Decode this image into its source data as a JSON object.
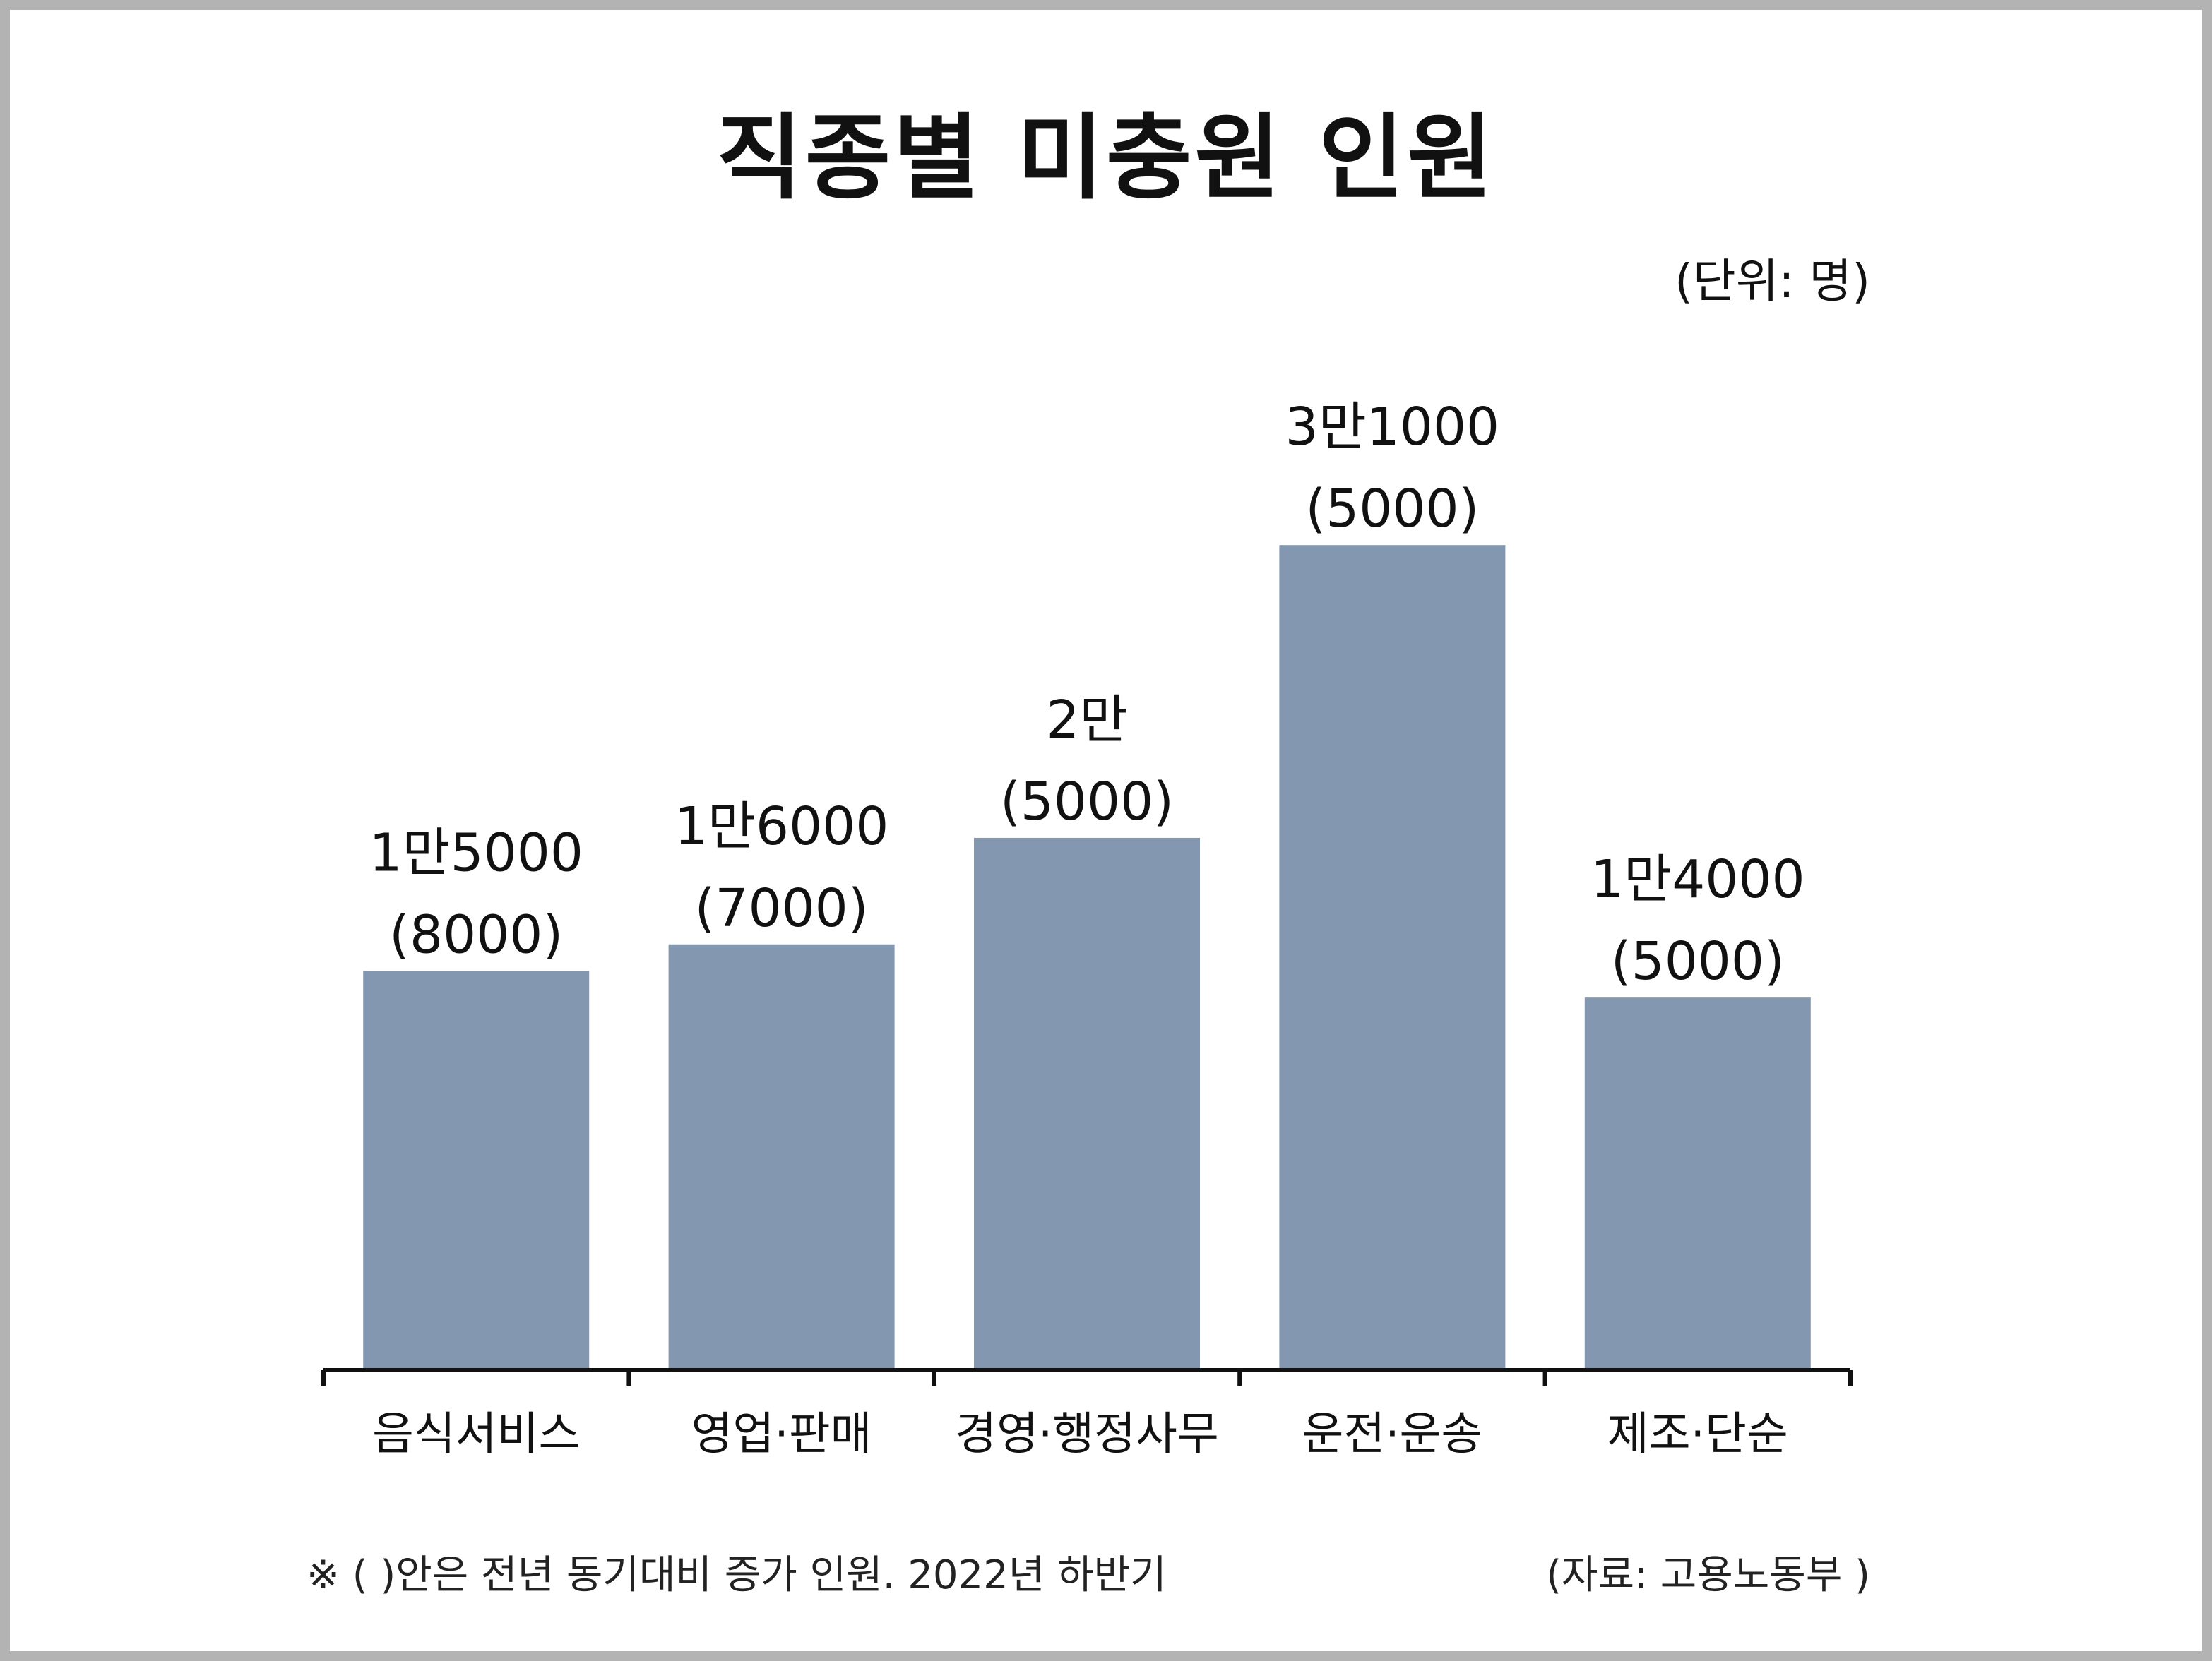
{
  "chart_data": {
    "type": "bar",
    "title": "직종별 미충원 인원",
    "unit_label": "(단위: 명)",
    "categories": [
      "음식서비스",
      "영업·판매",
      "경영·행정사무",
      "운전·운송",
      "제조·단순"
    ],
    "values": [
      15000,
      16000,
      20000,
      31000,
      14000
    ],
    "yoy_increase": [
      8000,
      7000,
      5000,
      5000,
      5000
    ],
    "value_labels": [
      "1만5000",
      "1만6000",
      "2만",
      "3만1000",
      "1만4000"
    ],
    "increase_labels": [
      "(8000)",
      "(7000)",
      "(5000)",
      "(5000)",
      "(5000)"
    ],
    "xlabel": "",
    "ylabel": "",
    "ylim": [
      0,
      37000
    ],
    "grid": false,
    "legend": "none",
    "bar_color": "#8497b0",
    "axis_color": "#111111",
    "footnote": "※ ( )안은 전년 동기대비 증가 인원. 2022년 하반기",
    "source": "(자료: 고용노동부 )"
  }
}
